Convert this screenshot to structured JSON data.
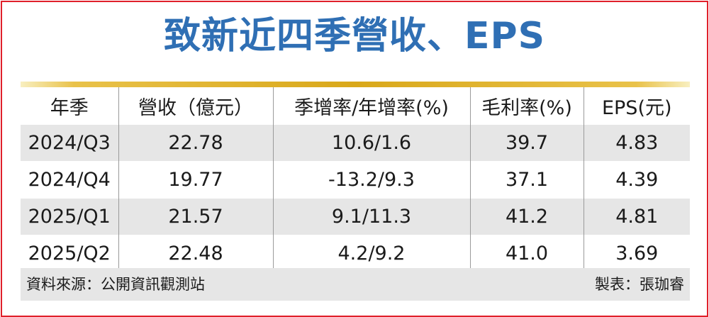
{
  "title": "致新近四季營收、EPS",
  "table": {
    "headers": [
      "年季",
      "營收（億元）",
      "季增率/年增率(%)",
      "毛利率(%)",
      "EPS(元)"
    ],
    "rows": [
      [
        "2024/Q3",
        "22.78",
        "10.6/1.6",
        "39.7",
        "4.83"
      ],
      [
        "2024/Q4",
        "19.77",
        "-13.2/9.3",
        "37.1",
        "4.39"
      ],
      [
        "2025/Q1",
        "21.57",
        "9.1/11.3",
        "41.2",
        "4.81"
      ],
      [
        "2025/Q2",
        "22.48",
        "4.2/9.2",
        "41.0",
        "3.69"
      ]
    ]
  },
  "footer": {
    "source": "資料來源：公開資訊觀測站",
    "maker": "製表：張珈睿"
  },
  "colors": {
    "title": "#2f6fb4",
    "border": "#e0202a",
    "rule": "#d9a81a",
    "stripe": "#e6e6e6"
  }
}
